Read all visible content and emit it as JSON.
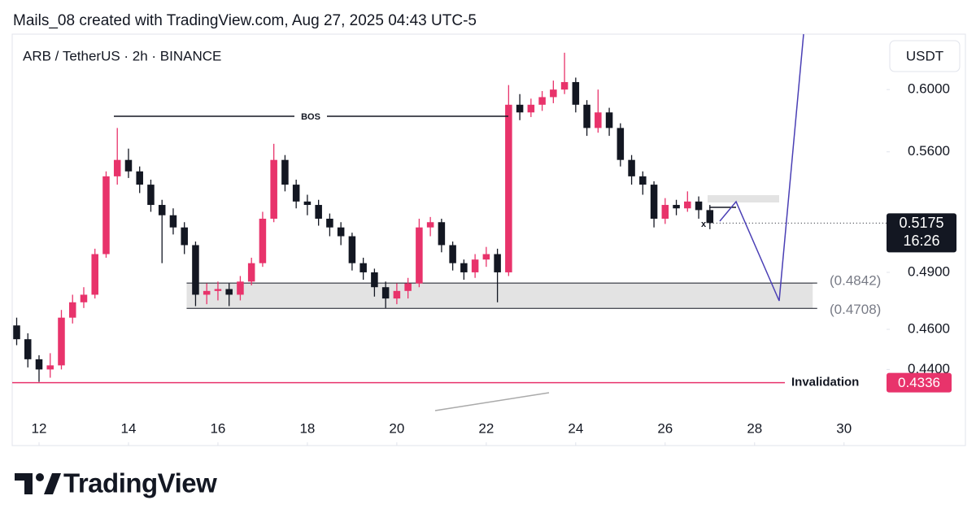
{
  "chart_data": {
    "type": "candlestick",
    "caption": "Mails_08 created with TradingView.com, Aug 27, 2025 04:43 UTC-5",
    "title": "ARB / TetherUS · 2h · BINANCE",
    "currency": "USDT",
    "brand": "TradingView",
    "log_scale": true,
    "up_color": "#e8336b",
    "down_color": "#131722",
    "x": [
      11.5,
      11.75,
      12,
      12.25,
      12.5,
      12.75,
      13,
      13.25,
      13.5,
      13.75,
      14,
      14.25,
      14.5,
      14.75,
      15,
      15.25,
      15.5,
      15.75,
      16,
      16.25,
      16.5,
      16.75,
      17,
      17.25,
      17.5,
      17.75,
      18,
      18.25,
      18.5,
      18.75,
      19,
      19.25,
      19.5,
      19.75,
      20,
      20.25,
      20.5,
      20.75,
      21,
      21.25,
      21.5,
      21.75,
      22,
      22.25,
      22.5,
      22.75,
      23,
      23.25,
      23.5,
      23.75,
      24,
      24.25,
      24.5,
      24.75,
      25,
      25.25,
      25.5,
      25.75,
      26,
      26.25,
      26.5,
      26.75,
      27
    ],
    "open": [
      0.462,
      0.455,
      0.445,
      0.44,
      0.442,
      0.466,
      0.474,
      0.478,
      0.5,
      0.545,
      0.555,
      0.548,
      0.54,
      0.528,
      0.522,
      0.515,
      0.505,
      0.478,
      0.48,
      0.481,
      0.478,
      0.485,
      0.495,
      0.52,
      0.555,
      0.54,
      0.53,
      0.528,
      0.52,
      0.515,
      0.51,
      0.495,
      0.49,
      0.482,
      0.476,
      0.48,
      0.484,
      0.515,
      0.518,
      0.505,
      0.495,
      0.49,
      0.497,
      0.5,
      0.49,
      0.59,
      0.585,
      0.59,
      0.595,
      0.6,
      0.605,
      0.59,
      0.575,
      0.585,
      0.575,
      0.555,
      0.545,
      0.54,
      0.52,
      0.528,
      0.526,
      0.53,
      0.525
    ],
    "high": [
      0.466,
      0.458,
      0.447,
      0.448,
      0.47,
      0.478,
      0.482,
      0.503,
      0.548,
      0.575,
      0.562,
      0.551,
      0.543,
      0.531,
      0.526,
      0.518,
      0.507,
      0.484,
      0.485,
      0.484,
      0.488,
      0.498,
      0.524,
      0.565,
      0.558,
      0.543,
      0.534,
      0.531,
      0.523,
      0.518,
      0.512,
      0.498,
      0.492,
      0.485,
      0.484,
      0.487,
      0.52,
      0.521,
      0.52,
      0.507,
      0.497,
      0.5,
      0.504,
      0.503,
      0.603,
      0.597,
      0.594,
      0.599,
      0.606,
      0.625,
      0.608,
      0.593,
      0.6,
      0.588,
      0.578,
      0.558,
      0.548,
      0.542,
      0.532,
      0.531,
      0.536,
      0.533,
      0.528
    ],
    "low": [
      0.452,
      0.441,
      0.434,
      0.436,
      0.44,
      0.463,
      0.471,
      0.476,
      0.498,
      0.54,
      0.544,
      0.535,
      0.524,
      0.495,
      0.511,
      0.5,
      0.472,
      0.473,
      0.475,
      0.472,
      0.475,
      0.483,
      0.493,
      0.518,
      0.536,
      0.526,
      0.522,
      0.516,
      0.51,
      0.505,
      0.491,
      0.486,
      0.477,
      0.471,
      0.473,
      0.476,
      0.482,
      0.51,
      0.501,
      0.491,
      0.486,
      0.487,
      0.493,
      0.474,
      0.488,
      0.58,
      0.582,
      0.586,
      0.591,
      0.597,
      0.585,
      0.57,
      0.572,
      0.57,
      0.551,
      0.54,
      0.534,
      0.515,
      0.517,
      0.522,
      0.524,
      0.52,
      0.514
    ],
    "close": [
      0.455,
      0.445,
      0.44,
      0.442,
      0.466,
      0.474,
      0.478,
      0.5,
      0.545,
      0.555,
      0.548,
      0.54,
      0.528,
      0.522,
      0.515,
      0.505,
      0.478,
      0.48,
      0.481,
      0.478,
      0.485,
      0.495,
      0.52,
      0.555,
      0.54,
      0.53,
      0.528,
      0.52,
      0.515,
      0.51,
      0.495,
      0.49,
      0.482,
      0.476,
      0.48,
      0.484,
      0.515,
      0.518,
      0.505,
      0.495,
      0.49,
      0.497,
      0.5,
      0.49,
      0.59,
      0.585,
      0.59,
      0.595,
      0.6,
      0.605,
      0.59,
      0.575,
      0.585,
      0.575,
      0.555,
      0.545,
      0.54,
      0.52,
      0.528,
      0.526,
      0.53,
      0.525,
      0.5175
    ],
    "xlim": [
      11.4,
      30.95
    ],
    "xticks": [
      12,
      14,
      16,
      18,
      20,
      22,
      24,
      26,
      28,
      30
    ],
    "ylim": [
      0.4185,
      0.638
    ],
    "yticks": [
      {
        "value": 0.6,
        "label": "0.6000"
      },
      {
        "value": 0.56,
        "label": "0.5600"
      },
      {
        "value": 0.49,
        "label": "0.4900"
      },
      {
        "value": 0.46,
        "label": "0.4600"
      },
      {
        "value": 0.44,
        "label": "0.4400"
      }
    ],
    "annotations": {
      "bos": "BOS",
      "zone": [
        {
          "value": 0.4842,
          "label": "(0.4842)"
        },
        {
          "value": 0.4708,
          "label": "(0.4708)"
        }
      ],
      "invalidation": {
        "label": "Invalidation",
        "value": 0.4336
      },
      "last_price": {
        "value": 0.5175,
        "countdown": "16:26"
      }
    }
  }
}
